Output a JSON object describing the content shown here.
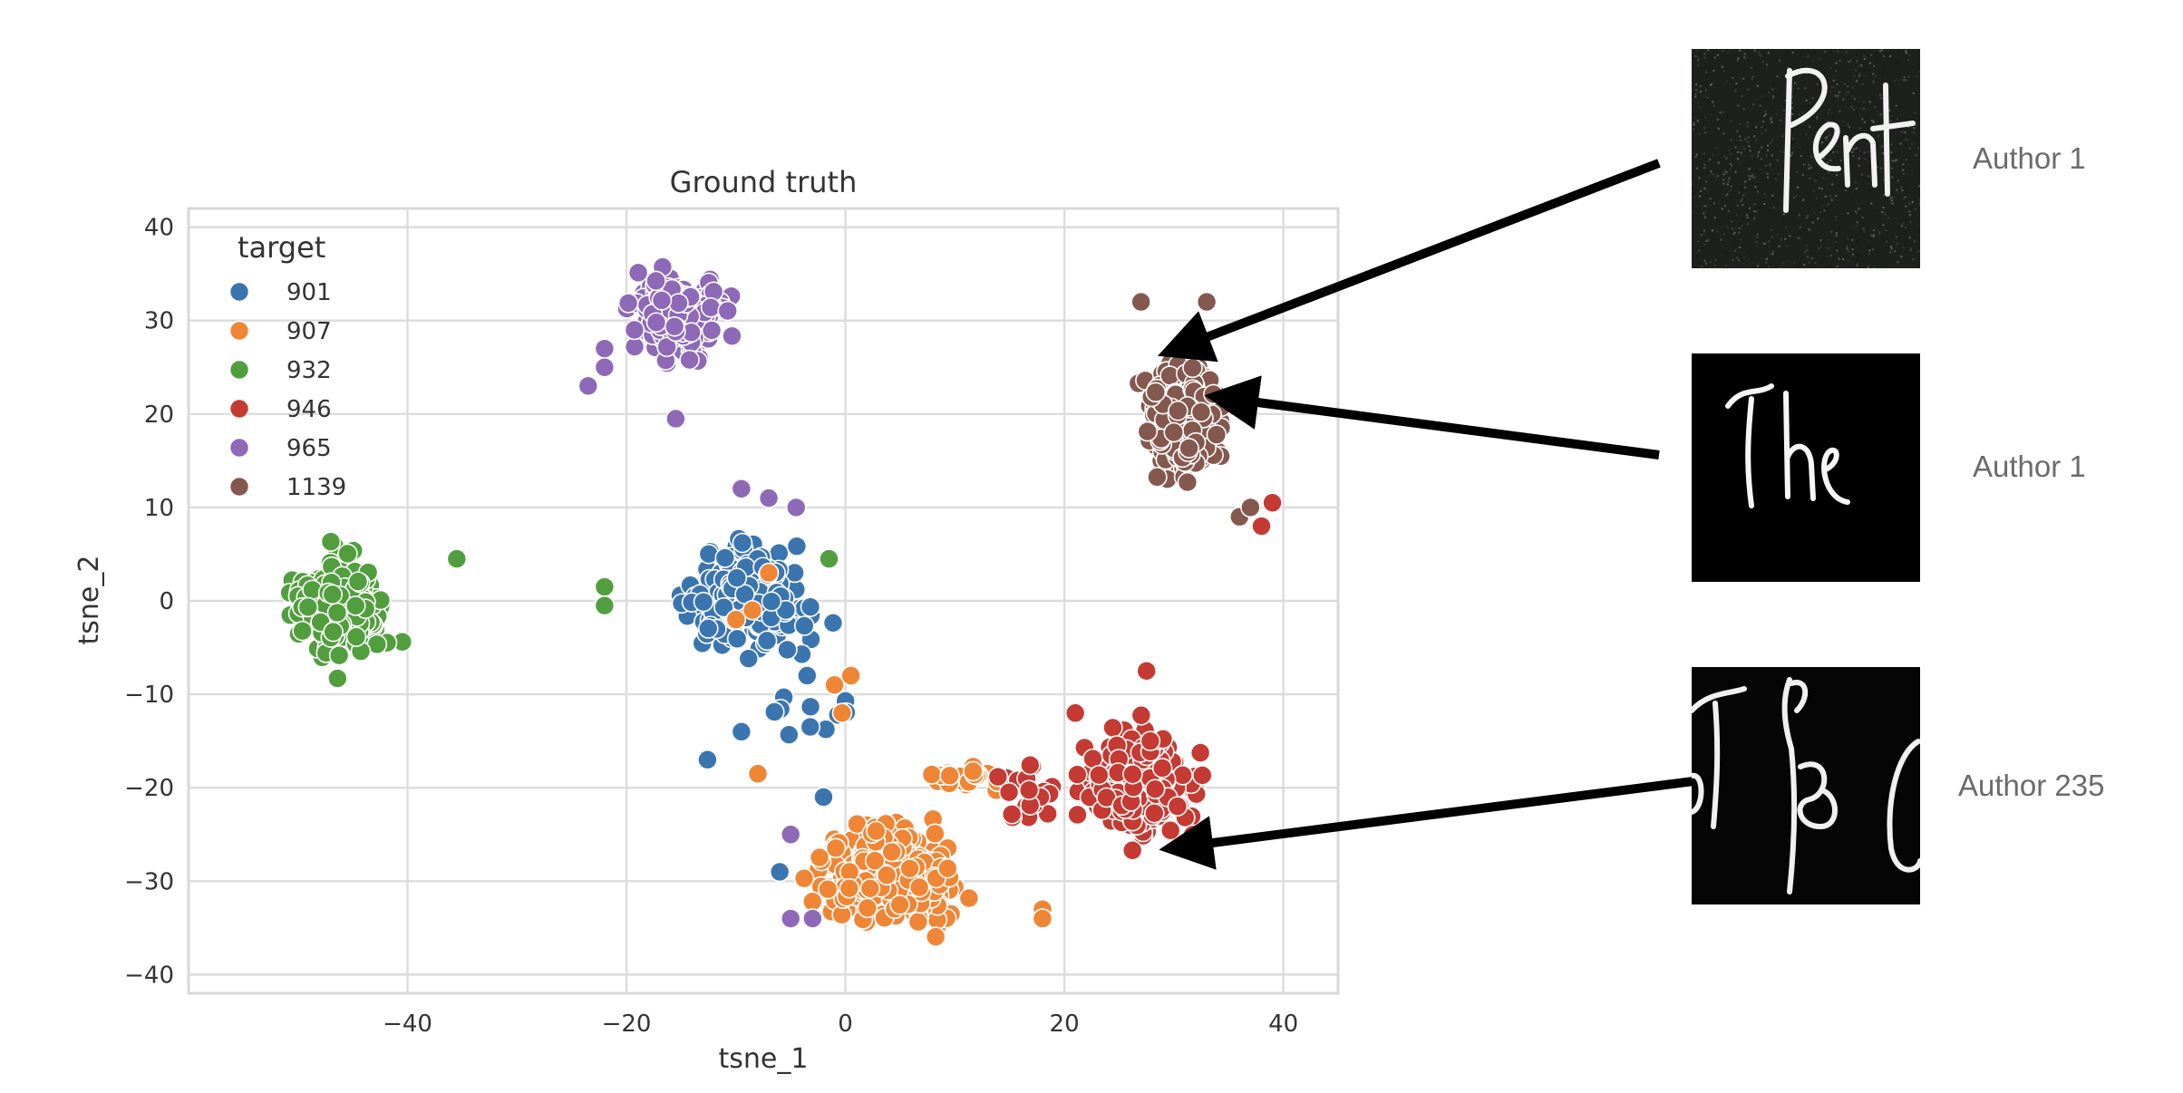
{
  "chart_data": {
    "type": "scatter",
    "title": "Ground truth",
    "xlabel": "tsne_1",
    "ylabel": "tsne_2",
    "xlim": [
      -60,
      45
    ],
    "ylim": [
      -42,
      42
    ],
    "xticks": [
      -40,
      -20,
      0,
      20,
      40
    ],
    "yticks": [
      -40,
      -30,
      -20,
      -10,
      0,
      10,
      20,
      30,
      40
    ],
    "xtick_labels": [
      "−40",
      "−20",
      "0",
      "20",
      "40"
    ],
    "ytick_labels": [
      "−40",
      "−30",
      "−20",
      "−10",
      "0",
      "10",
      "20",
      "30",
      "40"
    ],
    "grid": true,
    "legend": {
      "title": "target",
      "placement": "top-left"
    },
    "series": [
      {
        "name": "901",
        "color": "#3b75af",
        "clusters": [
          {
            "center": [
              -9,
              0
            ],
            "spread": [
              6.5,
              5.5
            ],
            "count": 230
          },
          {
            "center": [
              -3,
              -12
            ],
            "spread": [
              5,
              4
            ],
            "count": 10
          }
        ],
        "points": [
          [
            -12.6,
            -17
          ],
          [
            -9.5,
            -14
          ],
          [
            -6,
            -29
          ],
          [
            -2,
            -21
          ],
          [
            -3.5,
            -8
          ]
        ]
      },
      {
        "name": "907",
        "color": "#ef8636",
        "clusters": [
          {
            "center": [
              4,
              -29
            ],
            "spread": [
              6.5,
              5
            ],
            "count": 330
          },
          {
            "center": [
              11,
              -19
            ],
            "spread": [
              3.5,
              1.5
            ],
            "count": 22
          }
        ],
        "points": [
          [
            -1,
            -9
          ],
          [
            0.5,
            -8
          ],
          [
            -0.3,
            -12
          ],
          [
            -8,
            -18.5
          ],
          [
            -7,
            3
          ],
          [
            -8.5,
            -1
          ],
          [
            -10,
            -2
          ],
          [
            18,
            -33
          ],
          [
            18,
            -34
          ]
        ]
      },
      {
        "name": "932",
        "color": "#519e3e",
        "clusters": [
          {
            "center": [
              -46,
              -1
            ],
            "spread": [
              4,
              5.5
            ],
            "count": 280
          }
        ],
        "points": [
          [
            -35.5,
            4.5
          ],
          [
            -22,
            1.5
          ],
          [
            -22,
            -0.5
          ],
          [
            -1.5,
            4.5
          ]
        ]
      },
      {
        "name": "946",
        "color": "#c53a32",
        "clusters": [
          {
            "center": [
              27,
              -20
            ],
            "spread": [
              5,
              5.5
            ],
            "count": 300
          },
          {
            "center": [
              17,
              -20
            ],
            "spread": [
              3,
              3.5
            ],
            "count": 24
          }
        ],
        "points": [
          [
            27.5,
            -7.5
          ],
          [
            21,
            -12
          ],
          [
            39,
            10.5
          ],
          [
            38,
            8
          ]
        ]
      },
      {
        "name": "965",
        "color": "#8d69b8",
        "clusters": [
          {
            "center": [
              -15,
              30.5
            ],
            "spread": [
              4.6,
              4.2
            ],
            "count": 230
          }
        ],
        "points": [
          [
            -23.5,
            23
          ],
          [
            -22,
            27
          ],
          [
            -22,
            25
          ],
          [
            -15.5,
            19.5
          ],
          [
            -7,
            11
          ],
          [
            -9.5,
            12
          ],
          [
            -4.5,
            10
          ],
          [
            -5,
            -25
          ],
          [
            -5,
            -34
          ],
          [
            -3,
            -34
          ]
        ]
      },
      {
        "name": "1139",
        "color": "#84584e",
        "clusters": [
          {
            "center": [
              31,
              19.5
            ],
            "spread": [
              3.4,
              6.5
            ],
            "count": 300
          }
        ],
        "points": [
          [
            27,
            32
          ],
          [
            33,
            32
          ],
          [
            36,
            9
          ],
          [
            37,
            10
          ]
        ]
      }
    ]
  },
  "annotations": [
    {
      "label": "Author 1",
      "image_text": "Pent"
    },
    {
      "label": "Author 1",
      "image_text": "The"
    },
    {
      "label": "Author 235",
      "image_text": "To o"
    }
  ]
}
